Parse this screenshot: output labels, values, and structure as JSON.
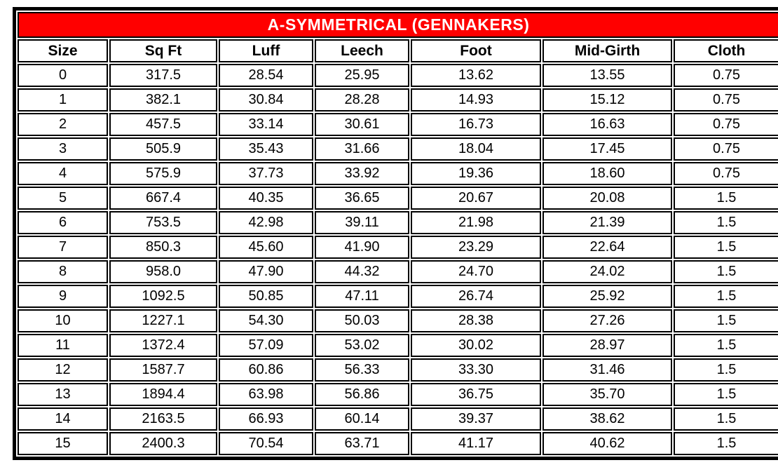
{
  "title_bar": {
    "text": "A-SYMMETRICAL (GENNAKERS)",
    "bg_color": "#FF0000",
    "text_color": "#FFFFFF",
    "border_color": "#000000"
  },
  "chart_data": {
    "type": "table",
    "title": "A-SYMMETRICAL (GENNAKERS)",
    "columns": [
      "Size",
      "Sq Ft",
      "Luff",
      "Leech",
      "Foot",
      "Mid-Girth",
      "Cloth"
    ],
    "rows": [
      [
        "0",
        "317.5",
        "28.54",
        "25.95",
        "13.62",
        "13.55",
        "0.75"
      ],
      [
        "1",
        "382.1",
        "30.84",
        "28.28",
        "14.93",
        "15.12",
        "0.75"
      ],
      [
        "2",
        "457.5",
        "33.14",
        "30.61",
        "16.73",
        "16.63",
        "0.75"
      ],
      [
        "3",
        "505.9",
        "35.43",
        "31.66",
        "18.04",
        "17.45",
        "0.75"
      ],
      [
        "4",
        "575.9",
        "37.73",
        "33.92",
        "19.36",
        "18.60",
        "0.75"
      ],
      [
        "5",
        "667.4",
        "40.35",
        "36.65",
        "20.67",
        "20.08",
        "1.5"
      ],
      [
        "6",
        "753.5",
        "42.98",
        "39.11",
        "21.98",
        "21.39",
        "1.5"
      ],
      [
        "7",
        "850.3",
        "45.60",
        "41.90",
        "23.29",
        "22.64",
        "1.5"
      ],
      [
        "8",
        "958.0",
        "47.90",
        "44.32",
        "24.70",
        "24.02",
        "1.5"
      ],
      [
        "9",
        "1092.5",
        "50.85",
        "47.11",
        "26.74",
        "25.92",
        "1.5"
      ],
      [
        "10",
        "1227.1",
        "54.30",
        "50.03",
        "28.38",
        "27.26",
        "1.5"
      ],
      [
        "11",
        "1372.4",
        "57.09",
        "53.02",
        "30.02",
        "28.97",
        "1.5"
      ],
      [
        "12",
        "1587.7",
        "60.86",
        "56.33",
        "33.30",
        "31.46",
        "1.5"
      ],
      [
        "13",
        "1894.4",
        "63.98",
        "56.86",
        "36.75",
        "35.70",
        "1.5"
      ],
      [
        "14",
        "2163.5",
        "66.93",
        "60.14",
        "39.37",
        "38.62",
        "1.5"
      ],
      [
        "15",
        "2400.3",
        "70.54",
        "63.71",
        "41.17",
        "40.62",
        "1.5"
      ]
    ]
  }
}
